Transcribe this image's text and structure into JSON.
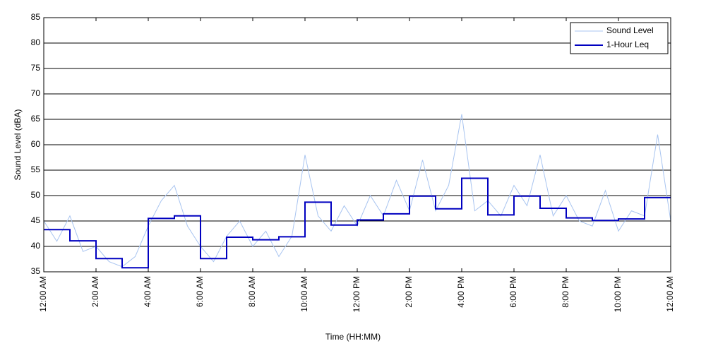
{
  "chart_data": {
    "type": "line",
    "ylabel": "Sound Level (dBA)",
    "xlabel": "Time (HH:MM)",
    "xlim": [
      0,
      24
    ],
    "ylim": [
      35,
      85
    ],
    "yticks": [
      35,
      40,
      45,
      50,
      55,
      60,
      65,
      70,
      75,
      80,
      85
    ],
    "xticks": [
      {
        "value": 0,
        "label": "12:00 AM"
      },
      {
        "value": 2,
        "label": "2:00 AM"
      },
      {
        "value": 4,
        "label": "4:00 AM"
      },
      {
        "value": 6,
        "label": "6:00 AM"
      },
      {
        "value": 8,
        "label": "8:00 AM"
      },
      {
        "value": 10,
        "label": "10:00 AM"
      },
      {
        "value": 12,
        "label": "12:00 PM"
      },
      {
        "value": 14,
        "label": "2:00 PM"
      },
      {
        "value": 16,
        "label": "4:00 PM"
      },
      {
        "value": 18,
        "label": "6:00 PM"
      },
      {
        "value": 20,
        "label": "8:00 PM"
      },
      {
        "value": 22,
        "label": "10:00 PM"
      },
      {
        "value": 24,
        "label": "12:00 AM"
      }
    ],
    "grid": true,
    "legend": "upper right",
    "series": [
      {
        "name": "Sound Level",
        "color": "#a8c4f0",
        "step": false,
        "x": [
          0,
          0.5,
          1,
          1.5,
          2,
          2.5,
          3,
          3.5,
          4,
          4.5,
          5,
          5.5,
          6,
          6.5,
          7,
          7.5,
          8,
          8.5,
          9,
          9.5,
          10,
          10.5,
          11,
          11.5,
          12,
          12.5,
          13,
          13.5,
          14,
          14.5,
          15,
          15.5,
          16,
          16.5,
          17,
          17.5,
          18,
          18.5,
          19,
          19.5,
          20,
          20.5,
          21,
          21.5,
          22,
          22.5,
          23,
          23.5,
          24
        ],
        "values": [
          45,
          41,
          46,
          39,
          40,
          37,
          36,
          38,
          44,
          49,
          52,
          44,
          40,
          37,
          42,
          45,
          40,
          43,
          38,
          42,
          58,
          46,
          43,
          48,
          44,
          50,
          46,
          53,
          47,
          57,
          47,
          52,
          66,
          47,
          49,
          46,
          52,
          48,
          58,
          46,
          50,
          45,
          44,
          51,
          43,
          47,
          46,
          62,
          45
        ]
      },
      {
        "name": "1-Hour Leq",
        "color": "#0000c0",
        "step": true,
        "x": [
          0,
          1,
          2,
          3,
          4,
          5,
          6,
          7,
          8,
          9,
          10,
          11,
          12,
          13,
          14,
          15,
          16,
          17,
          18,
          19,
          20,
          21,
          22,
          23
        ],
        "values": [
          43.3,
          41.1,
          37.6,
          35.8,
          45.5,
          46.0,
          37.6,
          41.8,
          41.3,
          41.9,
          48.7,
          44.2,
          45.2,
          46.4,
          49.9,
          47.4,
          53.4,
          46.2,
          49.9,
          47.5,
          45.6,
          45.1,
          45.4,
          49.6
        ]
      }
    ]
  }
}
